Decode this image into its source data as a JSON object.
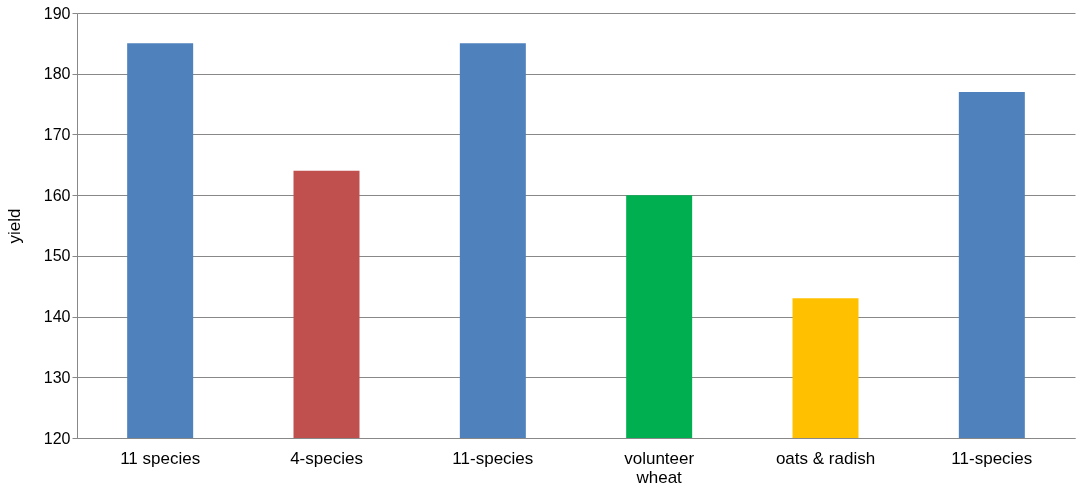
{
  "chart_data": {
    "type": "bar",
    "ylabel": "yield",
    "categories": [
      "11 species",
      "4-species",
      "11-species",
      "volunteer wheat",
      "oats & radish",
      "11-species"
    ],
    "values": [
      185,
      164,
      185,
      160,
      143,
      177
    ],
    "colors": [
      "#4f81bd",
      "#c0504d",
      "#4f81bd",
      "#00b050",
      "#ffc000",
      "#4f81bd"
    ],
    "ylim": [
      120,
      190
    ],
    "yticks": [
      120,
      130,
      140,
      150,
      160,
      170,
      180,
      190
    ],
    "grid": "y"
  }
}
